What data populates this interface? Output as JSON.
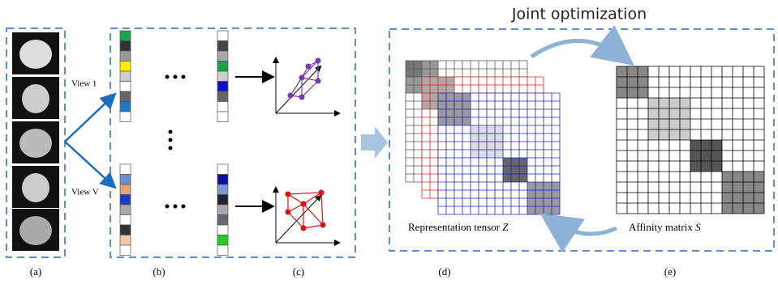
{
  "title": "Joint optimization",
  "views": [
    "View 1",
    "View V"
  ],
  "tensor": {
    "label": "Representation tensor",
    "symbol": "Z"
  },
  "affinity": {
    "label": "Affinity matrix",
    "symbol": "S"
  },
  "panels": [
    "(a)",
    "(b)",
    "(c)",
    "(d)",
    "(e)"
  ]
}
